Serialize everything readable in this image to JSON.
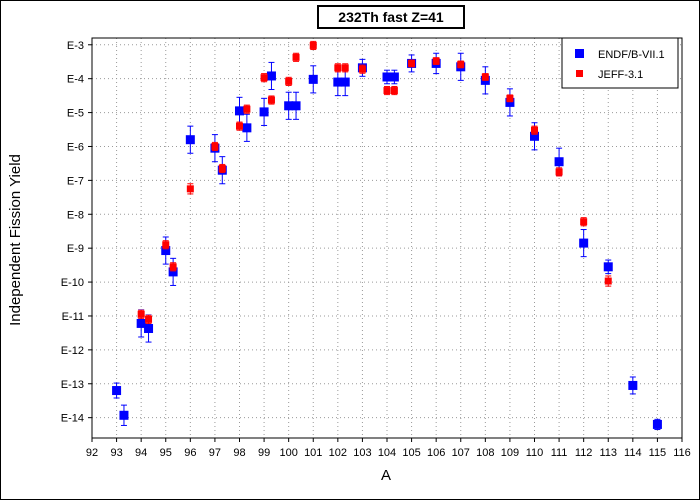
{
  "chart_data": {
    "type": "scatter",
    "title": "232Th fast Z=41",
    "xlabel": "A",
    "ylabel": "Independent Fission Yield",
    "xlim": [
      92,
      116
    ],
    "ylim": [
      -14.6,
      -2.8
    ],
    "x_ticks": [
      92,
      93,
      94,
      95,
      96,
      97,
      98,
      99,
      100,
      101,
      102,
      103,
      104,
      105,
      106,
      107,
      108,
      109,
      110,
      111,
      112,
      113,
      114,
      115,
      116
    ],
    "y_ticks": [
      {
        "value": -3,
        "label": "E-3"
      },
      {
        "value": -4,
        "label": "E-4"
      },
      {
        "value": -5,
        "label": "E-5"
      },
      {
        "value": -6,
        "label": "E-6"
      },
      {
        "value": -7,
        "label": "E-7"
      },
      {
        "value": -8,
        "label": "E-8"
      },
      {
        "value": -9,
        "label": "E-9"
      },
      {
        "value": -10,
        "label": "E-10"
      },
      {
        "value": -11,
        "label": "E-11"
      },
      {
        "value": -12,
        "label": "E-12"
      },
      {
        "value": -13,
        "label": "E-13"
      },
      {
        "value": -14,
        "label": "E-14"
      }
    ],
    "y_scale": "log10 (exponent shown as E-n)",
    "grid": true,
    "legend_position": "top-right",
    "series": [
      {
        "name": "ENDF/B-VII.1",
        "color": "#0000ff",
        "marker": "square",
        "points": [
          {
            "x": 93.0,
            "y": -13.2,
            "err": 0.22
          },
          {
            "x": 93.3,
            "y": -13.93,
            "err": 0.3
          },
          {
            "x": 94.0,
            "y": -11.22,
            "err": 0.4
          },
          {
            "x": 94.3,
            "y": -11.37,
            "err": 0.4
          },
          {
            "x": 95.0,
            "y": -9.07,
            "err": 0.4
          },
          {
            "x": 95.3,
            "y": -9.7,
            "err": 0.4
          },
          {
            "x": 96.0,
            "y": -5.8,
            "err": 0.4
          },
          {
            "x": 97.0,
            "y": -6.05,
            "err": 0.4
          },
          {
            "x": 97.3,
            "y": -6.7,
            "err": 0.4
          },
          {
            "x": 98.0,
            "y": -4.95,
            "err": 0.4
          },
          {
            "x": 98.3,
            "y": -5.45,
            "err": 0.4
          },
          {
            "x": 99.0,
            "y": -4.98,
            "err": 0.4
          },
          {
            "x": 99.3,
            "y": -3.92,
            "err": 0.4
          },
          {
            "x": 100.0,
            "y": -4.8,
            "err": 0.4
          },
          {
            "x": 100.3,
            "y": -4.8,
            "err": 0.4
          },
          {
            "x": 101.0,
            "y": -4.02,
            "err": 0.4
          },
          {
            "x": 102.0,
            "y": -4.1,
            "err": 0.4
          },
          {
            "x": 102.3,
            "y": -4.1,
            "err": 0.4
          },
          {
            "x": 103.0,
            "y": -3.68,
            "err": 0.25
          },
          {
            "x": 104.0,
            "y": -3.95,
            "err": 0.2
          },
          {
            "x": 104.3,
            "y": -3.95,
            "err": 0.2
          },
          {
            "x": 105.0,
            "y": -3.55,
            "err": 0.25
          },
          {
            "x": 106.0,
            "y": -3.55,
            "err": 0.3
          },
          {
            "x": 107.0,
            "y": -3.65,
            "err": 0.4
          },
          {
            "x": 108.0,
            "y": -4.05,
            "err": 0.4
          },
          {
            "x": 109.0,
            "y": -4.7,
            "err": 0.4
          },
          {
            "x": 110.0,
            "y": -5.7,
            "err": 0.4
          },
          {
            "x": 111.0,
            "y": -6.45,
            "err": 0.4
          },
          {
            "x": 112.0,
            "y": -8.85,
            "err": 0.4
          },
          {
            "x": 113.0,
            "y": -9.55,
            "err": 0.2
          },
          {
            "x": 114.0,
            "y": -13.05,
            "err": 0.25
          },
          {
            "x": 115.0,
            "y": -14.2,
            "err": 0.15
          }
        ]
      },
      {
        "name": "JEFF-3.1",
        "color": "#ff0000",
        "marker": "square",
        "points": [
          {
            "x": 94.0,
            "y": -10.95,
            "err": 0.12
          },
          {
            "x": 94.3,
            "y": -11.1,
            "err": 0.12
          },
          {
            "x": 95.0,
            "y": -8.9,
            "err": 0.12
          },
          {
            "x": 95.3,
            "y": -9.55,
            "err": 0.12
          },
          {
            "x": 96.0,
            "y": -7.25,
            "err": 0.15
          },
          {
            "x": 97.0,
            "y": -6.0,
            "err": 0.12
          },
          {
            "x": 97.3,
            "y": -6.65,
            "err": 0.12
          },
          {
            "x": 98.0,
            "y": -5.4,
            "err": 0.12
          },
          {
            "x": 98.3,
            "y": -4.9,
            "err": 0.12
          },
          {
            "x": 99.0,
            "y": -3.97,
            "err": 0.12
          },
          {
            "x": 99.3,
            "y": -4.63,
            "err": 0.12
          },
          {
            "x": 100.0,
            "y": -4.08,
            "err": 0.12
          },
          {
            "x": 100.3,
            "y": -3.37,
            "err": 0.12
          },
          {
            "x": 101.0,
            "y": -3.02,
            "err": 0.12
          },
          {
            "x": 102.0,
            "y": -3.68,
            "err": 0.12
          },
          {
            "x": 102.3,
            "y": -3.68,
            "err": 0.12
          },
          {
            "x": 103.0,
            "y": -3.72,
            "err": 0.12
          },
          {
            "x": 104.0,
            "y": -4.35,
            "err": 0.12
          },
          {
            "x": 104.3,
            "y": -4.35,
            "err": 0.12
          },
          {
            "x": 105.0,
            "y": -3.55,
            "err": 0.1
          },
          {
            "x": 106.0,
            "y": -3.48,
            "err": 0.1
          },
          {
            "x": 107.0,
            "y": -3.58,
            "err": 0.1
          },
          {
            "x": 108.0,
            "y": -3.95,
            "err": 0.1
          },
          {
            "x": 109.0,
            "y": -4.58,
            "err": 0.1
          },
          {
            "x": 110.0,
            "y": -5.52,
            "err": 0.12
          },
          {
            "x": 111.0,
            "y": -6.75,
            "err": 0.12
          },
          {
            "x": 112.0,
            "y": -8.22,
            "err": 0.12
          },
          {
            "x": 113.0,
            "y": -9.97,
            "err": 0.15
          }
        ]
      }
    ]
  }
}
